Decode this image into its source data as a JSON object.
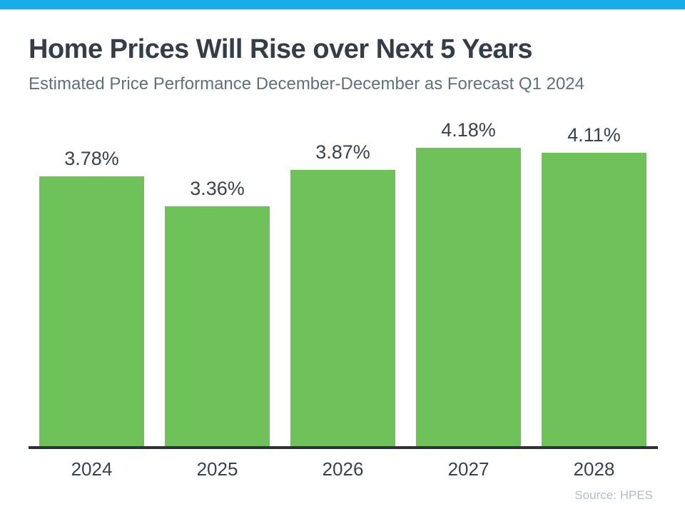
{
  "page": {
    "title": "Home Prices Will Rise over Next 5 Years",
    "subtitle": "Estimated Price Performance December-December as Forecast Q1 2024",
    "source": "Source: HPES"
  },
  "colors": {
    "accent_strip": "#18ACE8",
    "bar_fill": "#6FC15A",
    "title_text": "#333E48",
    "subtitle_text": "#5E717C",
    "axis_line": "#2A3138",
    "label_text": "#39434D",
    "source_text": "#B3BEC4"
  },
  "chart_data": {
    "type": "bar",
    "title": "Home Prices Will Rise over Next 5 Years",
    "subtitle": "Estimated Price Performance December-December as Forecast Q1 2024",
    "categories": [
      "2024",
      "2025",
      "2026",
      "2027",
      "2028"
    ],
    "values": [
      3.78,
      3.36,
      3.87,
      4.18,
      4.11
    ],
    "value_labels": [
      "3.78%",
      "3.36%",
      "3.87%",
      "4.18%",
      "4.11%"
    ],
    "xlabel": "",
    "ylabel": "",
    "ylim": [
      0,
      4.5
    ],
    "grid": false,
    "legend": null,
    "bar_color": "#6FC15A",
    "source": "Source: HPES"
  }
}
